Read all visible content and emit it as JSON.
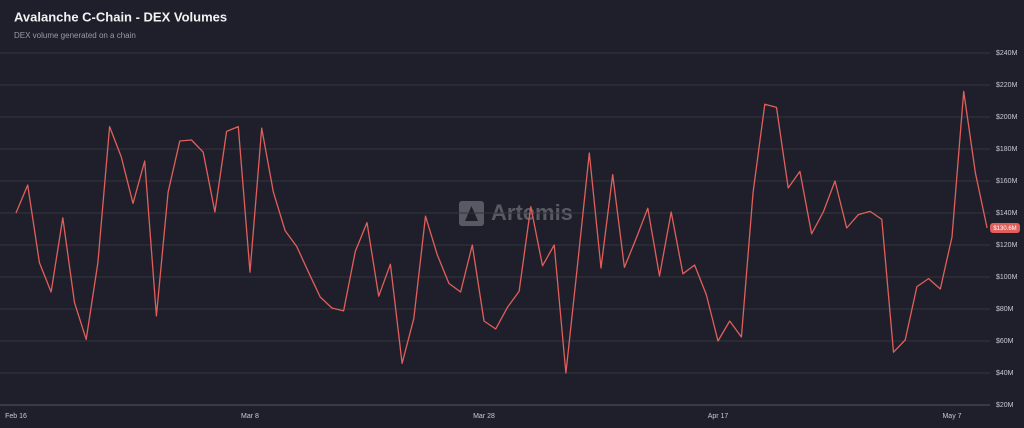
{
  "chart_data": {
    "type": "line",
    "title": "Avalanche C-Chain - DEX Volumes",
    "subtitle": "DEX volume generated on a chain",
    "watermark": "Artemis",
    "categories": [
      "Feb 16",
      null,
      null,
      null,
      null,
      null,
      null,
      null,
      null,
      null,
      null,
      null,
      null,
      null,
      null,
      null,
      null,
      null,
      null,
      null,
      "Mar 8",
      null,
      null,
      null,
      null,
      null,
      null,
      null,
      null,
      null,
      null,
      null,
      null,
      null,
      null,
      null,
      null,
      null,
      null,
      null,
      "Mar 28",
      null,
      null,
      null,
      null,
      null,
      null,
      null,
      null,
      null,
      null,
      null,
      null,
      null,
      null,
      null,
      null,
      null,
      null,
      null,
      "Apr 17",
      null,
      null,
      null,
      null,
      null,
      null,
      null,
      null,
      null,
      null,
      null,
      null,
      null,
      null,
      null,
      null,
      null,
      null,
      null,
      "May 7",
      null,
      null,
      null
    ],
    "series": [
      {
        "name": "DEX Volume",
        "color": "#e05f5a",
        "values": [
          140,
          157.5,
          109,
          90.6,
          137,
          84,
          61,
          109,
          194,
          175,
          146,
          172.5,
          75.6,
          153,
          185,
          185.6,
          178,
          140.6,
          191,
          194,
          103,
          193,
          153,
          129,
          119,
          103,
          87.5,
          80.6,
          78.8,
          116,
          134,
          88,
          108,
          46,
          74,
          138,
          114,
          96,
          90.6,
          120,
          72.5,
          67.5,
          81,
          91,
          144,
          107,
          120,
          40,
          108,
          177.5,
          105.6,
          164,
          106,
          124,
          143,
          100.6,
          140.6,
          102,
          107.5,
          89,
          60,
          72.5,
          62.5,
          153,
          208,
          206,
          155.6,
          166,
          127,
          140.6,
          160,
          130.6,
          139,
          141,
          136,
          53,
          60.6,
          94,
          99,
          92.5,
          125,
          216,
          165,
          130.6
        ]
      }
    ],
    "current_label": "$130.6M",
    "ylim": [
      20,
      240
    ],
    "yticks": [
      {
        "value": 20,
        "label": "$20M"
      },
      {
        "value": 40,
        "label": "$40M"
      },
      {
        "value": 60,
        "label": "$60M"
      },
      {
        "value": 80,
        "label": "$80M"
      },
      {
        "value": 100,
        "label": "$100M"
      },
      {
        "value": 120,
        "label": "$120M"
      },
      {
        "value": 140,
        "label": "$140M"
      },
      {
        "value": 160,
        "label": "$160M"
      },
      {
        "value": 180,
        "label": "$180M"
      },
      {
        "value": 200,
        "label": "$200M"
      },
      {
        "value": 220,
        "label": "$220M"
      },
      {
        "value": 240,
        "label": "$240M"
      }
    ],
    "grid": true
  }
}
